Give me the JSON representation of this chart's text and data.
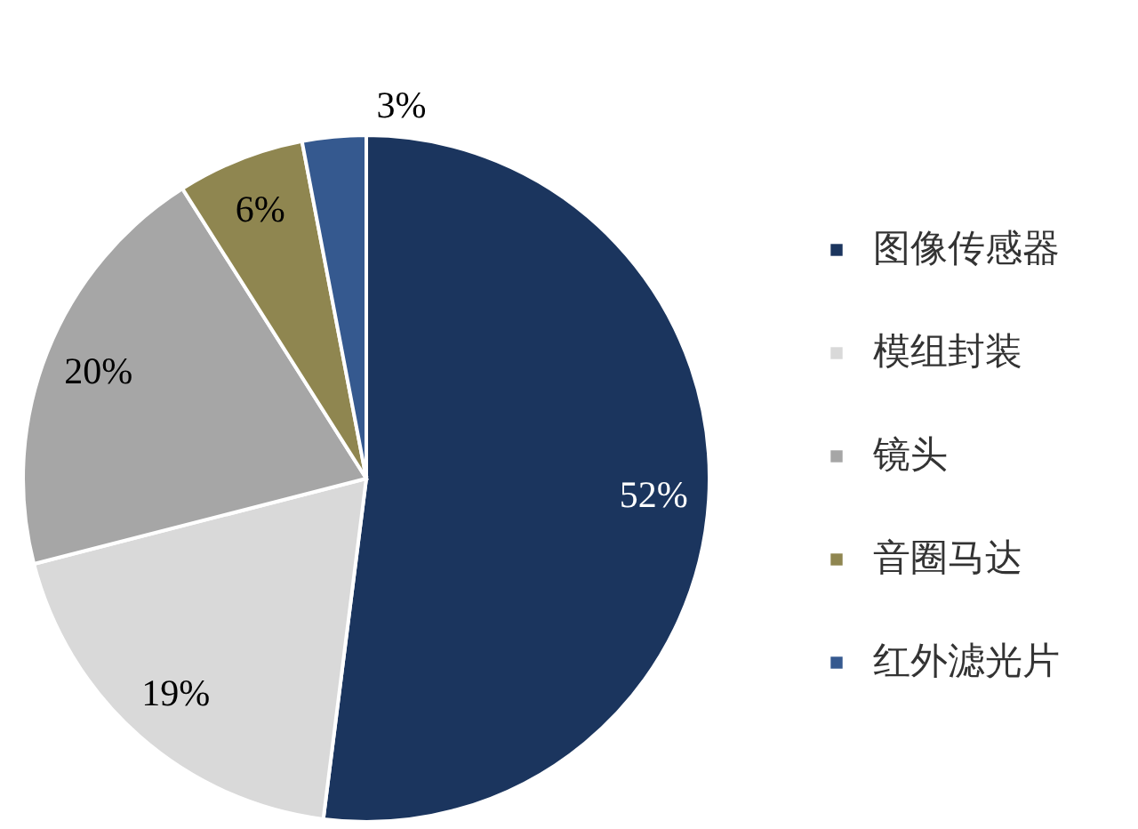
{
  "chart_data": {
    "type": "pie",
    "categories": [
      "图像传感器",
      "模组封装",
      "镜头",
      "音圈马达",
      "红外滤光片"
    ],
    "values": [
      52,
      19,
      20,
      6,
      3
    ],
    "colors": [
      "#1b355e",
      "#d9d9d9",
      "#a6a6a6",
      "#8f8650",
      "#35598f"
    ],
    "value_labels": [
      "52%",
      "19%",
      "20%",
      "6%",
      "3%"
    ],
    "legend": "right"
  }
}
